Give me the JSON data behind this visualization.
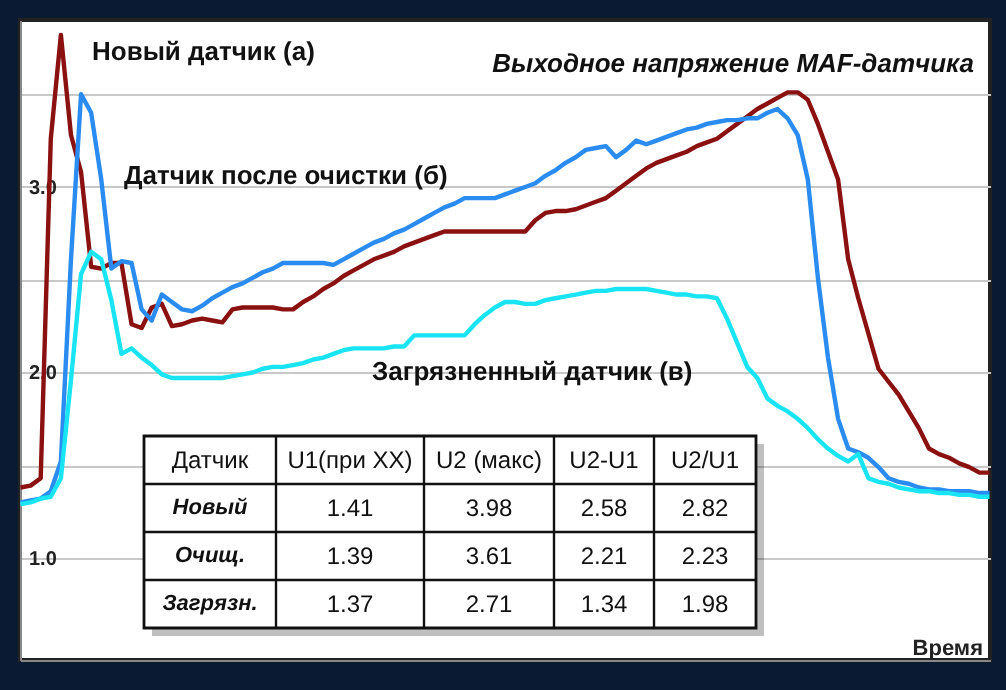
{
  "chart_data": {
    "type": "line",
    "title": "Выходное напряжение MAF-датчика",
    "xlabel": "Время",
    "categories": [
      null,
      null,
      null,
      null,
      null,
      null,
      null,
      null,
      null,
      null,
      null,
      null,
      null,
      null,
      null,
      null,
      null,
      null,
      null,
      null,
      null,
      null,
      null,
      null,
      null,
      null,
      null,
      null,
      null,
      null,
      null,
      null,
      null,
      null,
      null,
      null,
      null,
      null,
      null,
      null,
      null,
      null,
      null,
      null,
      null,
      null,
      null,
      null,
      null,
      null,
      null,
      null,
      null,
      null,
      null,
      null,
      null,
      null,
      null,
      null,
      null,
      null,
      null,
      null,
      null,
      null,
      null,
      null,
      null,
      null,
      null,
      null,
      null,
      null,
      null,
      null,
      null,
      null,
      null,
      null,
      null,
      null,
      null,
      null,
      null,
      null,
      null,
      null,
      null,
      null,
      null,
      null,
      null,
      null,
      null,
      null,
      null
    ],
    "ylim": [
      0.45,
      3.9
    ],
    "yticks": [
      {
        "value": 1.0,
        "label": "1.0"
      },
      {
        "value": 1.5,
        "label": null
      },
      {
        "value": 2.0,
        "label": "2.0"
      },
      {
        "value": 2.5,
        "label": null
      },
      {
        "value": 3.0,
        "label": "3.0"
      },
      {
        "value": 3.5,
        "label": null
      }
    ],
    "tick_labels": "y",
    "grid": "y",
    "marker": "none",
    "line_style": "solid",
    "series": [
      {
        "name": "Новый датчик (а)",
        "color": "#8b1010",
        "values": [
          1.38,
          1.39,
          1.43,
          3.26,
          3.82,
          3.28,
          3.08,
          2.57,
          2.56,
          2.59,
          2.59,
          2.26,
          2.24,
          2.35,
          2.37,
          2.25,
          2.26,
          2.28,
          2.29,
          2.28,
          2.27,
          2.34,
          2.35,
          2.35,
          2.35,
          2.35,
          2.34,
          2.34,
          2.38,
          2.41,
          2.45,
          2.48,
          2.52,
          2.55,
          2.58,
          2.61,
          2.63,
          2.65,
          2.68,
          2.7,
          2.72,
          2.74,
          2.76,
          2.76,
          2.76,
          2.76,
          2.76,
          2.76,
          2.76,
          2.76,
          2.76,
          2.82,
          2.86,
          2.87,
          2.87,
          2.88,
          2.9,
          2.92,
          2.94,
          2.98,
          3.02,
          3.06,
          3.1,
          3.13,
          3.15,
          3.17,
          3.19,
          3.22,
          3.24,
          3.26,
          3.3,
          3.34,
          3.38,
          3.42,
          3.45,
          3.48,
          3.51,
          3.51,
          3.47,
          3.34,
          3.19,
          3.04,
          2.61,
          2.4,
          2.21,
          2.02,
          1.95,
          1.88,
          1.79,
          1.7,
          1.59,
          1.56,
          1.54,
          1.51,
          1.49,
          1.46,
          1.46
        ]
      },
      {
        "name": "Датчик после очистки (б)",
        "color": "#2a8cf0",
        "values": [
          1.3,
          1.31,
          1.32,
          1.36,
          1.52,
          2.61,
          3.5,
          3.4,
          3.04,
          2.56,
          2.6,
          2.59,
          2.34,
          2.28,
          2.42,
          2.38,
          2.34,
          2.33,
          2.36,
          2.4,
          2.43,
          2.46,
          2.48,
          2.51,
          2.54,
          2.56,
          2.59,
          2.59,
          2.59,
          2.59,
          2.59,
          2.58,
          2.61,
          2.64,
          2.67,
          2.7,
          2.72,
          2.75,
          2.77,
          2.8,
          2.83,
          2.86,
          2.89,
          2.91,
          2.94,
          2.94,
          2.94,
          2.94,
          2.96,
          2.98,
          3.0,
          3.02,
          3.06,
          3.09,
          3.13,
          3.16,
          3.2,
          3.21,
          3.22,
          3.16,
          3.2,
          3.25,
          3.23,
          3.25,
          3.27,
          3.29,
          3.31,
          3.32,
          3.34,
          3.35,
          3.36,
          3.36,
          3.37,
          3.37,
          3.4,
          3.42,
          3.37,
          3.28,
          3.04,
          2.51,
          2.08,
          1.75,
          1.59,
          1.57,
          1.54,
          1.49,
          1.43,
          1.41,
          1.4,
          1.38,
          1.37,
          1.37,
          1.36,
          1.36,
          1.36,
          1.35,
          1.35
        ]
      },
      {
        "name": "Загрязненный датчик (в)",
        "color": "#18e4f4",
        "values": [
          1.29,
          1.3,
          1.32,
          1.33,
          1.43,
          1.96,
          2.53,
          2.65,
          2.61,
          2.39,
          2.1,
          2.13,
          2.08,
          2.04,
          1.99,
          1.97,
          1.97,
          1.97,
          1.97,
          1.97,
          1.97,
          1.98,
          1.99,
          2.0,
          2.02,
          2.03,
          2.03,
          2.04,
          2.05,
          2.07,
          2.08,
          2.1,
          2.12,
          2.13,
          2.13,
          2.13,
          2.13,
          2.14,
          2.14,
          2.2,
          2.2,
          2.2,
          2.2,
          2.2,
          2.2,
          2.26,
          2.31,
          2.35,
          2.38,
          2.38,
          2.37,
          2.37,
          2.39,
          2.4,
          2.41,
          2.42,
          2.43,
          2.44,
          2.44,
          2.45,
          2.45,
          2.45,
          2.45,
          2.44,
          2.43,
          2.42,
          2.42,
          2.41,
          2.41,
          2.4,
          2.29,
          2.16,
          2.03,
          1.97,
          1.86,
          1.82,
          1.79,
          1.75,
          1.7,
          1.64,
          1.59,
          1.55,
          1.52,
          1.56,
          1.43,
          1.41,
          1.4,
          1.38,
          1.37,
          1.36,
          1.36,
          1.35,
          1.35,
          1.34,
          1.34,
          1.33,
          1.33
        ]
      }
    ],
    "annotations": [
      "Датчик",
      "U1(при XX)",
      "U2 (макс)",
      "U2-U1",
      "U2/U1",
      "Новый",
      "1.41",
      "3.98",
      "2.58",
      "2.82",
      "Очищ.",
      "1.39",
      "3.61",
      "2.21",
      "2.23",
      "Загрязн.",
      "1.37",
      "2.71",
      "1.34",
      "1.98"
    ]
  }
}
